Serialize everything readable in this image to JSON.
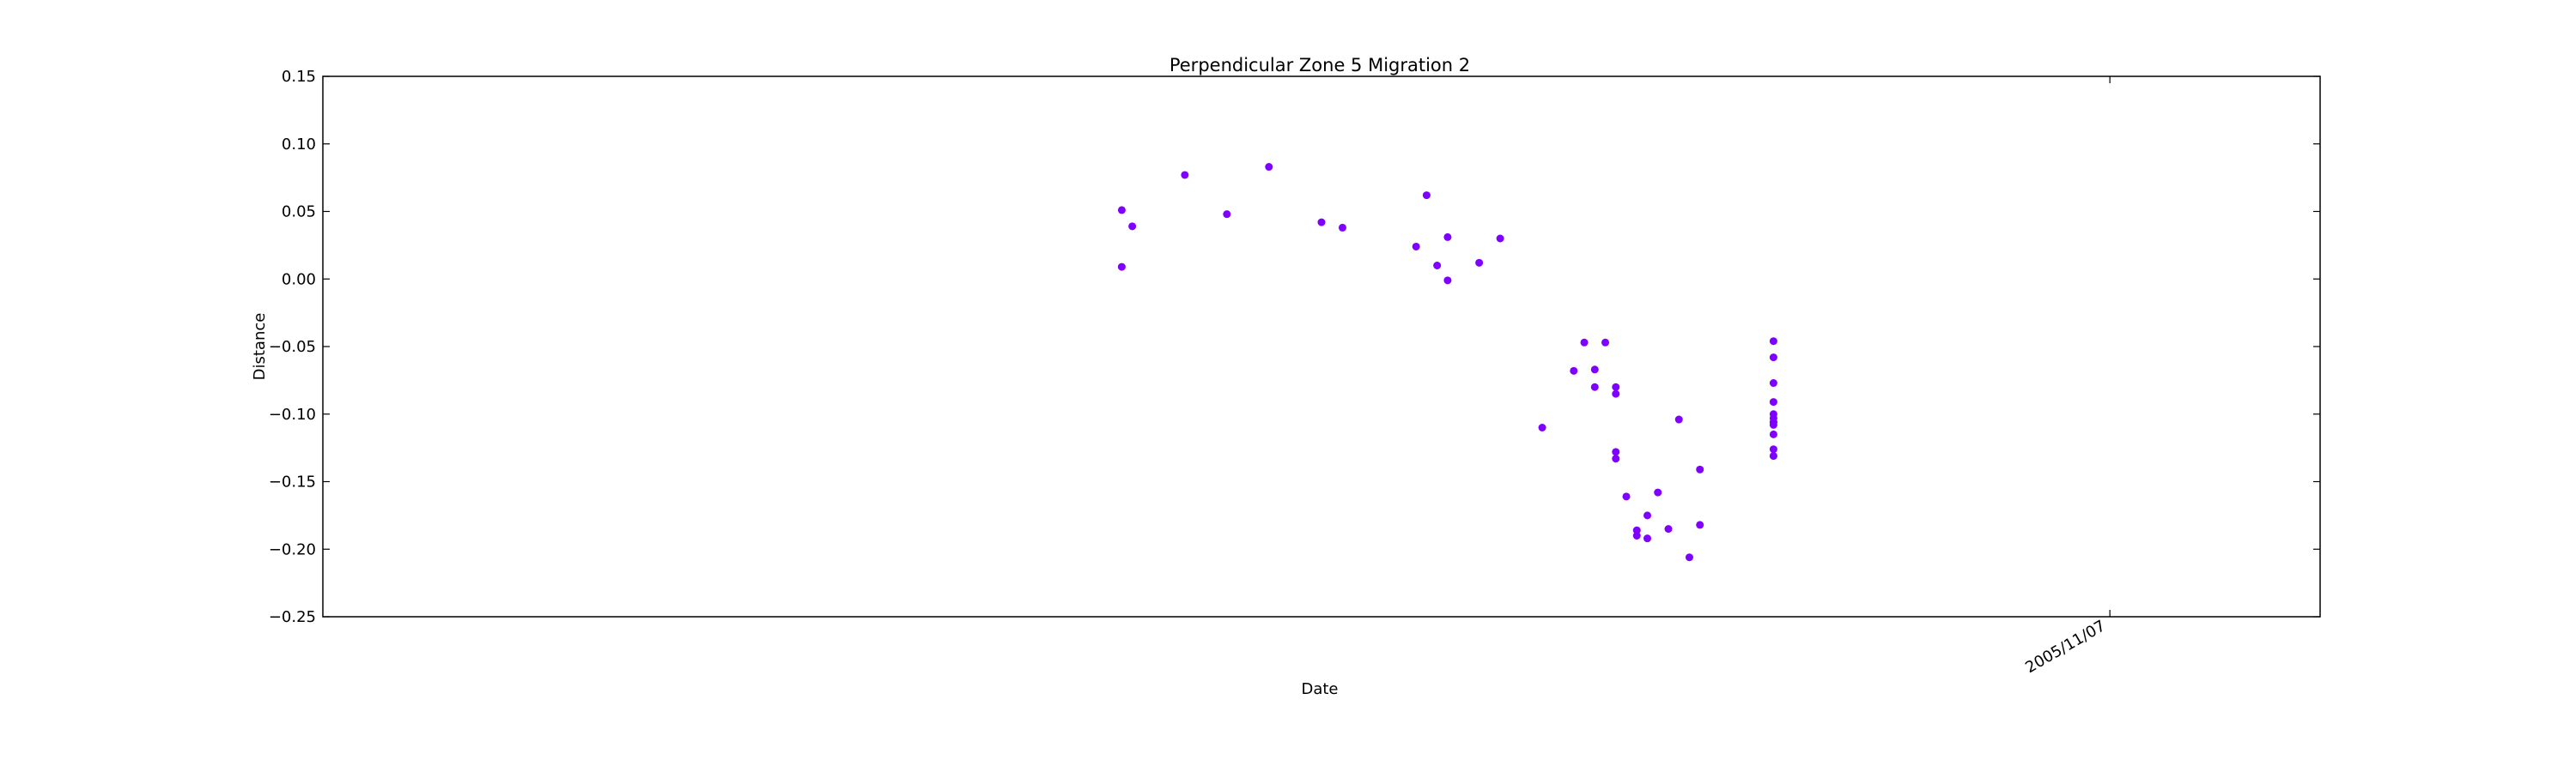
{
  "chart_data": {
    "type": "scatter",
    "title": "Perpendicular Zone 5 Migration 2",
    "xlabel": "Date",
    "ylabel": "Distance",
    "ylim": [
      -0.25,
      0.15
    ],
    "xlim": [
      "2005-05-21",
      "2005-11-27"
    ],
    "yticks": [
      "0.15",
      "0.10",
      "0.05",
      "0.00",
      "−0.05",
      "−0.10",
      "−0.15",
      "−0.20",
      "−0.25"
    ],
    "xtick_labels": [
      {
        "date": "2005-11-07",
        "label": "2005/11/07"
      }
    ],
    "grid": false,
    "legend": "none",
    "marker_color": "#7f00ff",
    "series": [
      {
        "points": [
          {
            "x": "2005-08-05",
            "y": 0.051
          },
          {
            "x": "2005-08-05",
            "y": 0.009
          },
          {
            "x": "2005-08-06",
            "y": 0.039
          },
          {
            "x": "2005-08-11",
            "y": 0.077
          },
          {
            "x": "2005-08-15",
            "y": 0.048
          },
          {
            "x": "2005-08-19",
            "y": 0.083
          },
          {
            "x": "2005-08-24",
            "y": 0.042
          },
          {
            "x": "2005-08-26",
            "y": 0.038
          },
          {
            "x": "2005-09-02",
            "y": 0.024
          },
          {
            "x": "2005-09-03",
            "y": 0.062
          },
          {
            "x": "2005-09-04",
            "y": 0.01
          },
          {
            "x": "2005-09-05",
            "y": 0.031
          },
          {
            "x": "2005-09-05",
            "y": -0.001
          },
          {
            "x": "2005-09-08",
            "y": 0.012
          },
          {
            "x": "2005-09-10",
            "y": 0.03
          },
          {
            "x": "2005-09-14",
            "y": -0.11
          },
          {
            "x": "2005-09-17",
            "y": -0.068
          },
          {
            "x": "2005-09-18",
            "y": -0.047
          },
          {
            "x": "2005-09-19",
            "y": -0.067
          },
          {
            "x": "2005-09-19",
            "y": -0.08
          },
          {
            "x": "2005-09-20",
            "y": -0.047
          },
          {
            "x": "2005-09-21",
            "y": -0.085
          },
          {
            "x": "2005-09-21",
            "y": -0.133
          },
          {
            "x": "2005-09-21",
            "y": -0.128
          },
          {
            "x": "2005-09-21",
            "y": -0.08
          },
          {
            "x": "2005-09-22",
            "y": -0.161
          },
          {
            "x": "2005-09-23",
            "y": -0.19
          },
          {
            "x": "2005-09-23",
            "y": -0.186
          },
          {
            "x": "2005-09-24",
            "y": -0.175
          },
          {
            "x": "2005-09-24",
            "y": -0.192
          },
          {
            "x": "2005-09-25",
            "y": -0.158
          },
          {
            "x": "2005-09-26",
            "y": -0.185
          },
          {
            "x": "2005-09-27",
            "y": -0.104
          },
          {
            "x": "2005-09-28",
            "y": -0.206
          },
          {
            "x": "2005-09-29",
            "y": -0.182
          },
          {
            "x": "2005-09-29",
            "y": -0.141
          },
          {
            "x": "2005-10-06",
            "y": -0.046
          },
          {
            "x": "2005-10-06",
            "y": -0.058
          },
          {
            "x": "2005-10-06",
            "y": -0.077
          },
          {
            "x": "2005-10-06",
            "y": -0.091
          },
          {
            "x": "2005-10-06",
            "y": -0.1
          },
          {
            "x": "2005-10-06",
            "y": -0.103
          },
          {
            "x": "2005-10-06",
            "y": -0.106
          },
          {
            "x": "2005-10-06",
            "y": -0.108
          },
          {
            "x": "2005-10-06",
            "y": -0.115
          },
          {
            "x": "2005-10-06",
            "y": -0.126
          },
          {
            "x": "2005-10-06",
            "y": -0.131
          },
          {
            "x": "2005-10-06",
            "y": -0.106
          }
        ]
      }
    ]
  }
}
